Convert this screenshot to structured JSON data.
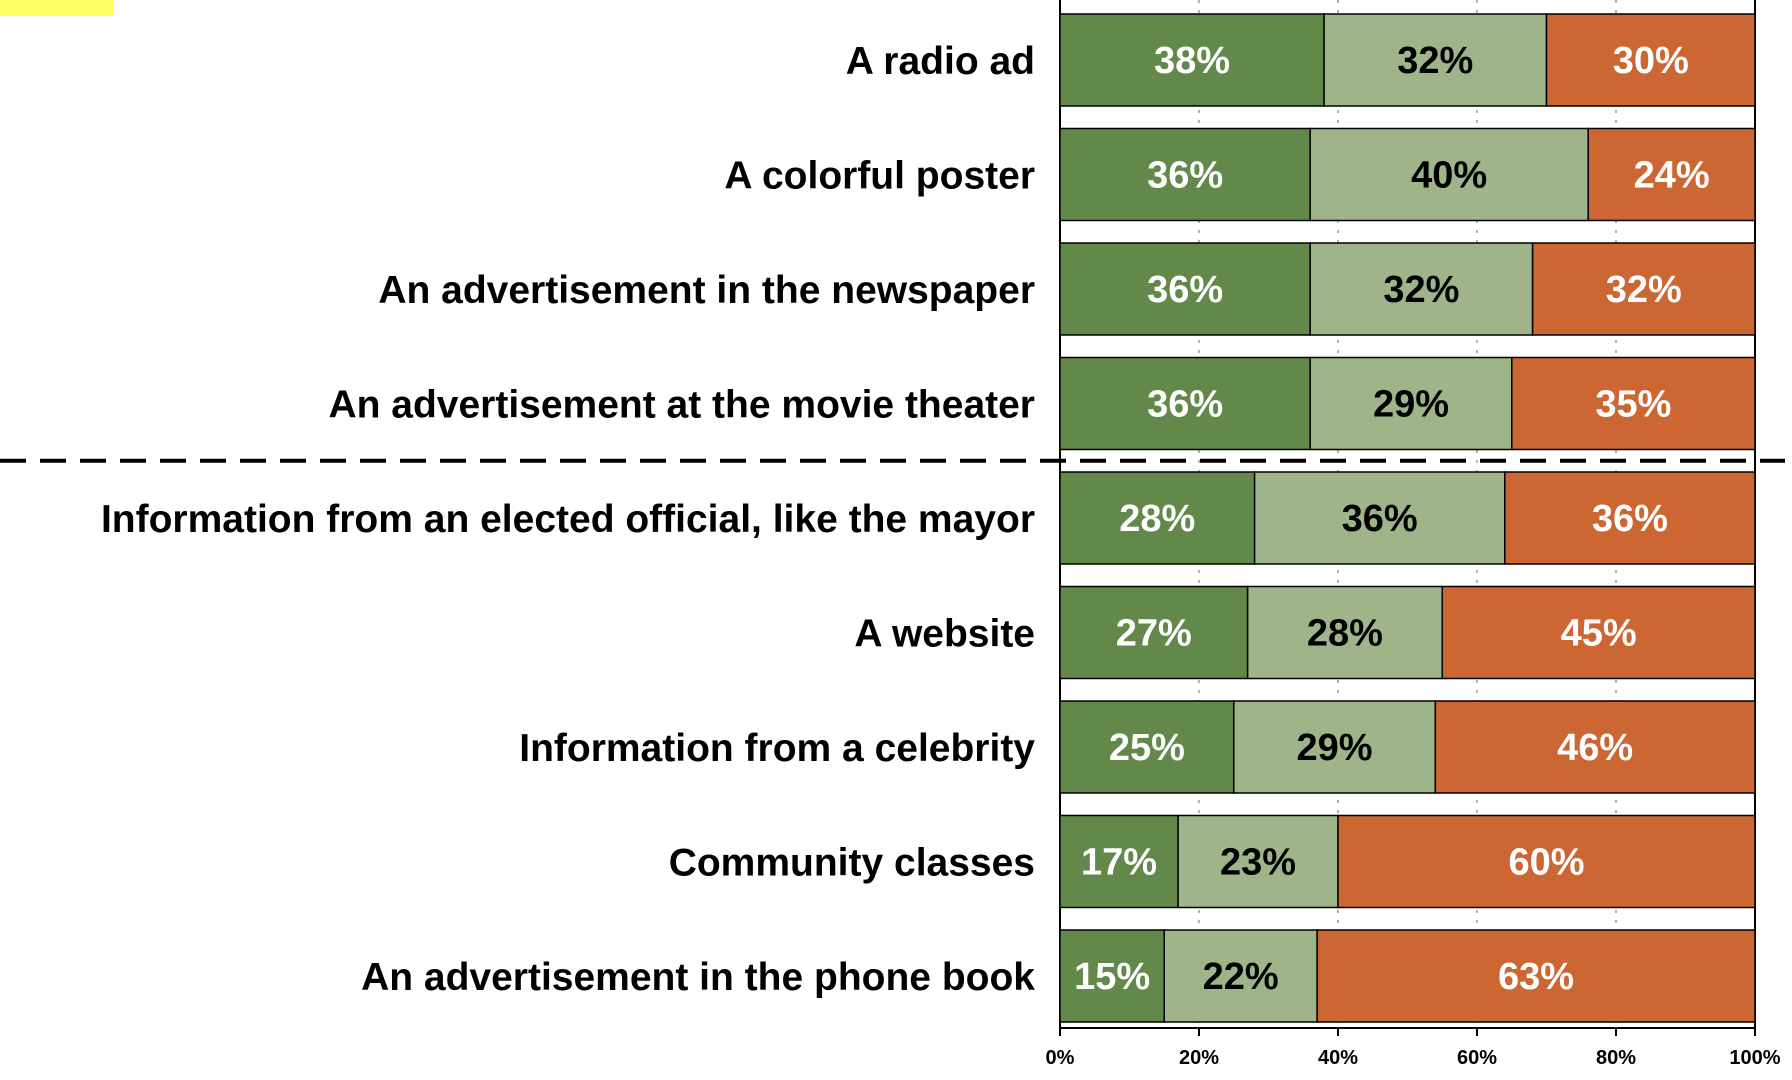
{
  "chart_data": {
    "type": "bar",
    "orientation": "horizontal",
    "stacked": true,
    "categories": [
      "A radio ad",
      "A colorful poster",
      "An advertisement in the newspaper",
      "An advertisement at the movie theater",
      "Information from an elected official, like the mayor",
      "A website",
      "Information from a celebrity",
      "Community classes",
      "An advertisement in the phone book"
    ],
    "series": [
      {
        "values": [
          38,
          36,
          36,
          36,
          28,
          27,
          25,
          17,
          15
        ],
        "color": "#62884a",
        "label_color": "#ffffff"
      },
      {
        "values": [
          32,
          40,
          32,
          29,
          36,
          28,
          29,
          23,
          22
        ],
        "color": "#9fb589",
        "label_color": "#000000"
      },
      {
        "values": [
          30,
          24,
          32,
          35,
          36,
          45,
          46,
          60,
          63
        ],
        "color": "#cc6633",
        "label_color": "#ffffff"
      }
    ],
    "value_suffix": "%",
    "xlim": [
      0,
      100
    ],
    "xticks": [
      "0%",
      "20%",
      "40%",
      "60%",
      "80%",
      "100%"
    ],
    "divider_after_index": 3,
    "grid": true,
    "legend": "none"
  },
  "highlight_color": "#ffff66"
}
